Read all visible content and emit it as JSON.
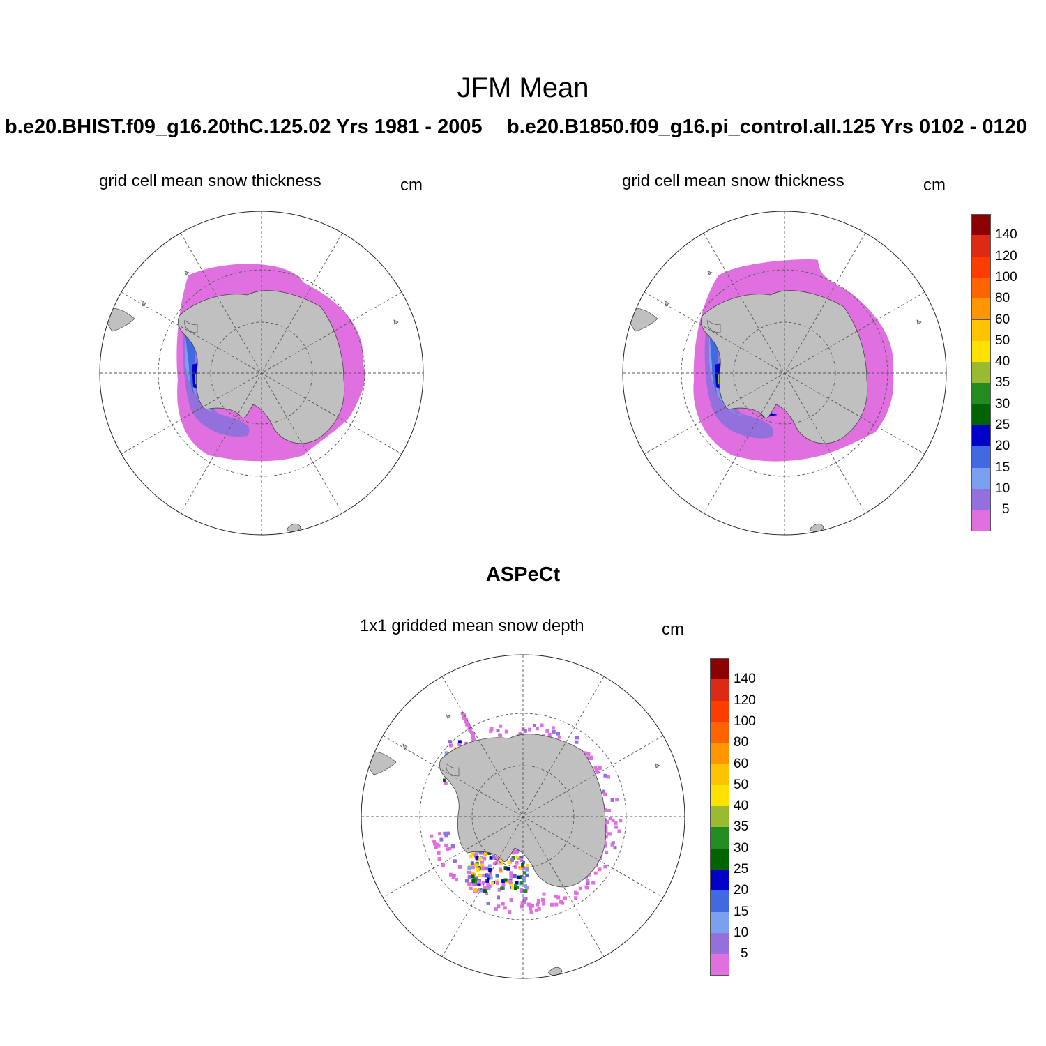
{
  "figure": {
    "title": "JFM Mean",
    "case_left": "b.e20.BHIST.f09_g16.20thC.125.02  Yrs 1981 - 2005",
    "case_right": "b.e20.B1850.f09_g16.pi_control.all.125  Yrs 0102 - 0120",
    "obs_title": "ASPeCt"
  },
  "panels": {
    "model_left": {
      "subtitle": "grid cell mean snow thickness",
      "units": "cm"
    },
    "model_right": {
      "subtitle": "grid cell mean snow thickness",
      "units": "cm"
    },
    "aspect": {
      "subtitle": "1x1 gridded mean snow depth",
      "units": "cm"
    }
  },
  "colorbar": {
    "labels": [
      "140",
      "120",
      "100",
      "80",
      "60",
      "50",
      "40",
      "35",
      "30",
      "25",
      "20",
      "15",
      "10",
      "5"
    ],
    "colors_top_to_bottom": [
      "#8b0000",
      "#dc2a14",
      "#ff3c00",
      "#ff6400",
      "#ff9600",
      "#ffc300",
      "#ffe100",
      "#9aba32",
      "#228b22",
      "#006400",
      "#0000c8",
      "#4169e1",
      "#7ba0f0",
      "#9370db",
      "#e070e0"
    ]
  },
  "colors": {
    "land": "#c0c0c0",
    "ice_low": "#e070e0",
    "ice_mid": "#9370db",
    "ice_10": "#7ba0f0",
    "ice_15": "#4169e1",
    "ice_20": "#0000c8",
    "ice_25": "#006400",
    "ice_30": "#228b22"
  }
}
